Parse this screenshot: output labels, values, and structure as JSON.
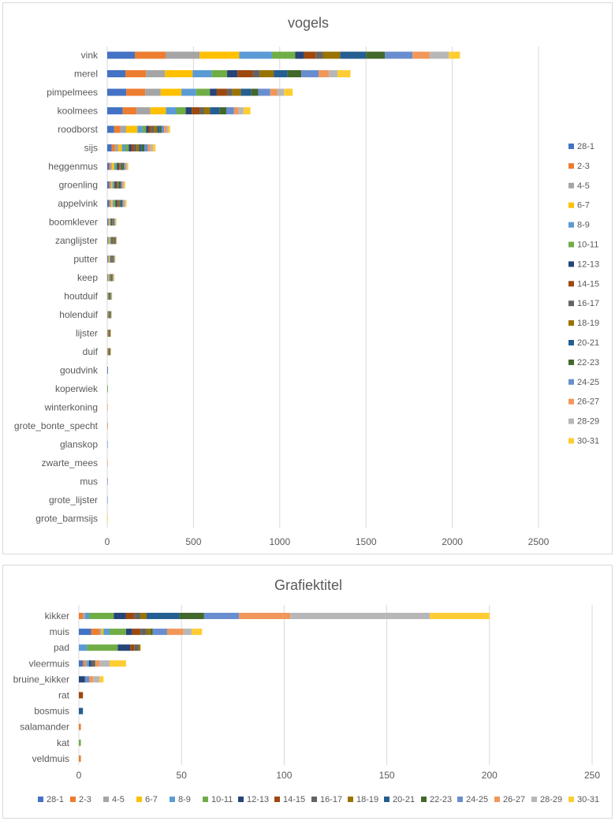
{
  "colors": [
    "#4472c4",
    "#ed7d31",
    "#a5a5a5",
    "#ffc000",
    "#5b9bd5",
    "#70ad47",
    "#264478",
    "#9e480e",
    "#636363",
    "#997300",
    "#255e91",
    "#43682b",
    "#698ed0",
    "#f1975a",
    "#b7b7b7",
    "#ffcd33"
  ],
  "chart_data": [
    {
      "type": "bar",
      "orientation": "horizontal",
      "stacked": true,
      "title": "vogels",
      "xlim": [
        0,
        2500
      ],
      "xticks": [
        0,
        500,
        1000,
        1500,
        2000,
        2500
      ],
      "grid": true,
      "legend": "right",
      "series_names": [
        "28-1",
        "2-3",
        "4-5",
        "6-7",
        "8-9",
        "10-11",
        "12-13",
        "14-15",
        "16-17",
        "18-19",
        "20-21",
        "22-23",
        "24-25",
        "26-27",
        "28-29",
        "30-31"
      ],
      "categories": [
        "vink",
        "merel",
        "pimpelmees",
        "koolmees",
        "roodborst",
        "sijs",
        "heggenmus",
        "groenling",
        "appelvink",
        "boomklever",
        "zanglijster",
        "putter",
        "keep",
        "houtduif",
        "holenduif",
        "lijster",
        "duif",
        "goudvink",
        "koperwiek",
        "winterkoning",
        "grote_bonte_specht",
        "glanskop",
        "zwarte_mees",
        "mus",
        "grote_lijster",
        "grote_barmsijs"
      ],
      "values": [
        [
          160,
          180,
          195,
          230,
          190,
          135,
          50,
          70,
          40,
          100,
          150,
          110,
          160,
          100,
          110,
          65
        ],
        [
          105,
          120,
          110,
          160,
          110,
          90,
          60,
          90,
          40,
          80,
          80,
          80,
          100,
          60,
          50,
          75
        ],
        [
          110,
          110,
          90,
          120,
          85,
          80,
          40,
          60,
          30,
          50,
          60,
          40,
          70,
          40,
          40,
          50
        ],
        [
          90,
          80,
          80,
          90,
          60,
          55,
          35,
          45,
          25,
          35,
          55,
          40,
          45,
          25,
          30,
          40
        ],
        [
          40,
          35,
          35,
          65,
          30,
          20,
          15,
          15,
          15,
          20,
          15,
          10,
          15,
          15,
          10,
          10
        ],
        [
          25,
          20,
          20,
          20,
          20,
          20,
          15,
          15,
          15,
          15,
          15,
          15,
          20,
          15,
          15,
          15
        ],
        [
          12,
          8,
          8,
          12,
          8,
          8,
          8,
          6,
          6,
          6,
          6,
          8,
          8,
          6,
          6,
          6
        ],
        [
          12,
          6,
          6,
          6,
          6,
          6,
          8,
          6,
          6,
          6,
          6,
          6,
          6,
          6,
          6,
          6
        ],
        [
          12,
          6,
          6,
          8,
          8,
          8,
          8,
          6,
          6,
          6,
          8,
          6,
          6,
          6,
          6,
          6
        ],
        [
          6,
          3,
          3,
          3,
          3,
          3,
          4,
          3,
          3,
          3,
          3,
          3,
          4,
          3,
          3,
          3
        ],
        [
          4,
          4,
          4,
          4,
          4,
          4,
          4,
          4,
          4,
          4,
          4,
          4,
          2,
          2,
          2,
          2
        ],
        [
          4,
          3,
          3,
          3,
          4,
          3,
          3,
          3,
          3,
          3,
          3,
          3,
          3,
          2,
          2,
          2
        ],
        [
          2,
          2,
          4,
          3,
          2,
          2,
          2,
          2,
          3,
          3,
          2,
          3,
          3,
          3,
          3,
          3
        ],
        [
          1,
          1,
          1,
          1,
          2,
          3,
          2,
          2,
          2,
          2,
          2,
          3,
          2,
          1,
          1,
          1
        ],
        [
          1,
          1,
          1,
          1,
          2,
          2,
          2,
          2,
          2,
          2,
          2,
          2,
          2,
          1,
          1,
          1
        ],
        [
          1,
          3,
          1,
          1,
          1,
          1,
          1,
          3,
          2,
          1,
          1,
          1,
          1,
          1,
          1,
          1
        ],
        [
          1,
          3,
          1,
          1,
          1,
          1,
          1,
          3,
          2,
          1,
          1,
          1,
          1,
          1,
          1,
          1
        ],
        [
          4,
          0,
          0,
          0,
          0,
          0,
          0,
          0,
          0,
          0,
          0,
          0,
          0,
          0,
          0,
          0
        ],
        [
          0,
          0,
          0,
          0,
          0,
          4,
          0,
          0,
          0,
          0,
          0,
          0,
          0,
          0,
          0,
          0
        ],
        [
          0,
          0,
          0,
          0,
          0,
          0,
          0,
          0,
          0,
          0,
          0,
          0,
          0,
          3,
          0,
          0
        ],
        [
          0,
          3,
          0,
          0,
          0,
          0,
          0,
          0,
          0,
          0,
          0,
          0,
          0,
          0,
          0,
          0
        ],
        [
          0,
          0,
          0,
          0,
          3,
          0,
          0,
          0,
          0,
          0,
          0,
          0,
          0,
          0,
          0,
          0
        ],
        [
          0,
          0,
          0,
          0,
          0,
          0,
          0,
          0,
          0,
          0,
          0,
          0,
          0,
          3,
          0,
          0
        ],
        [
          0,
          0,
          0,
          0,
          0,
          0,
          0,
          0,
          0,
          0,
          0,
          0,
          3,
          0,
          0,
          0
        ],
        [
          0,
          0,
          0,
          0,
          3,
          0,
          0,
          0,
          0,
          0,
          0,
          0,
          0,
          0,
          0,
          0
        ],
        [
          0,
          0,
          0,
          0,
          0,
          0,
          0,
          0,
          0,
          0,
          0,
          0,
          0,
          0,
          0,
          3
        ]
      ]
    },
    {
      "type": "bar",
      "orientation": "horizontal",
      "stacked": true,
      "title": "Grafiektitel",
      "xlim": [
        0,
        250
      ],
      "xticks": [
        0,
        50,
        100,
        150,
        200,
        250
      ],
      "grid": true,
      "legend": "bottom",
      "series_names": [
        "28-1",
        "2-3",
        "4-5",
        "6-7",
        "8-9",
        "10-11",
        "12-13",
        "14-15",
        "16-17",
        "18-19",
        "20-21",
        "22-23",
        "24-25",
        "26-27",
        "28-29",
        "30-31"
      ],
      "categories": [
        "kikker",
        "muis",
        "pad",
        "vleermuis",
        "bruine_kikker",
        "rat",
        "bosmuis",
        "salamander",
        "kat",
        "veldmuis"
      ],
      "values": [
        [
          0,
          2,
          1,
          0,
          2,
          12,
          6,
          4,
          3,
          3,
          16,
          12,
          17,
          25,
          68,
          29
        ],
        [
          6,
          4,
          1,
          1,
          3,
          8,
          3,
          4,
          3,
          2,
          0,
          1,
          7,
          8,
          4,
          5
        ],
        [
          0,
          0,
          0,
          0,
          4,
          15,
          6,
          2,
          2,
          1,
          0,
          0,
          0,
          0,
          0,
          0
        ],
        [
          2,
          1,
          1,
          0,
          1,
          0,
          1,
          0,
          2,
          0,
          0,
          0,
          0,
          2,
          5,
          8
        ],
        [
          0,
          0,
          0,
          0,
          0,
          0,
          3,
          0,
          0,
          0,
          0,
          0,
          2,
          2,
          3,
          2
        ],
        [
          0,
          0,
          0,
          0,
          0,
          0,
          0,
          2,
          0,
          0,
          0,
          0,
          0,
          0,
          0,
          0
        ],
        [
          0,
          0,
          0,
          0,
          0,
          0,
          0,
          0,
          0,
          0,
          2,
          0,
          0,
          0,
          0,
          0
        ],
        [
          0,
          1,
          0,
          0,
          0,
          0,
          0,
          0,
          0,
          0,
          0,
          0,
          0,
          0,
          0,
          0
        ],
        [
          0,
          0,
          0,
          0,
          0,
          1,
          0,
          0,
          0,
          0,
          0,
          0,
          0,
          0,
          0,
          0
        ],
        [
          0,
          1,
          0,
          0,
          0,
          0,
          0,
          0,
          0,
          0,
          0,
          0,
          0,
          0,
          0,
          0
        ]
      ]
    }
  ]
}
